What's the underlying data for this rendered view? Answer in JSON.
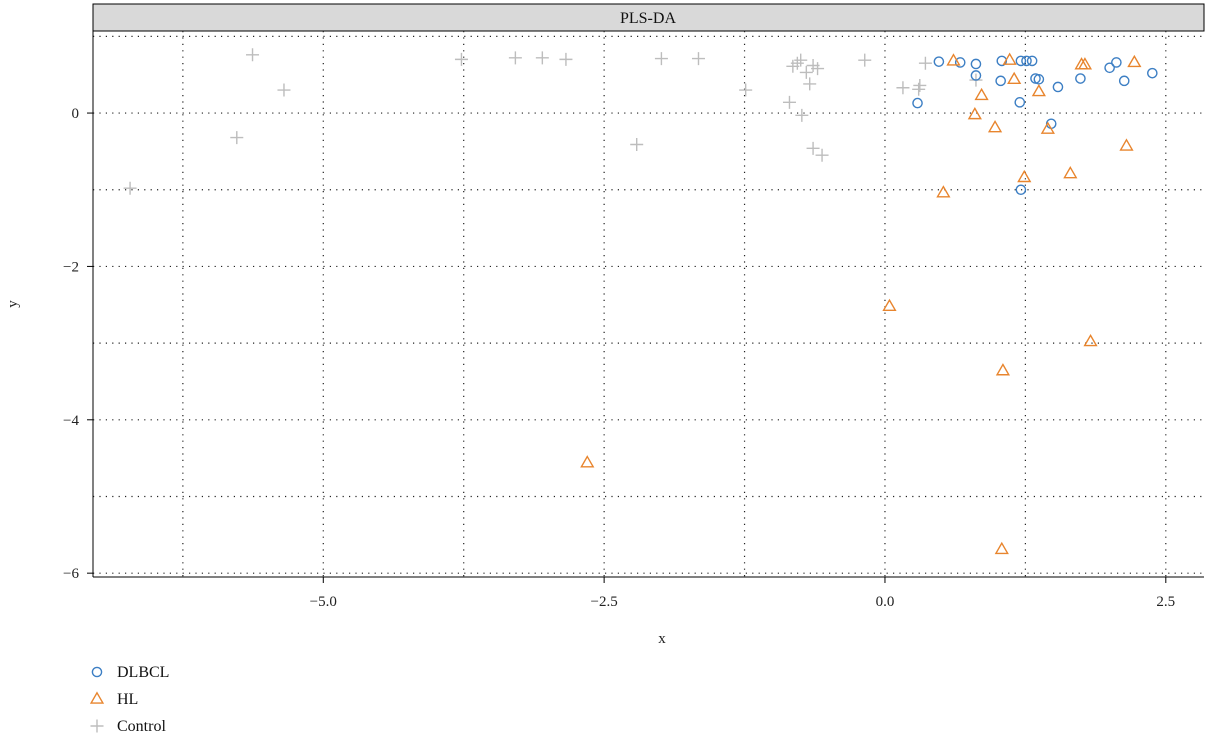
{
  "chart_data": {
    "type": "scatter",
    "title": "PLS-DA",
    "xlabel": "x",
    "ylabel": "y",
    "xlim": [
      -7.05,
      2.84
    ],
    "ylim": [
      -6.05,
      1.07
    ],
    "x_ticks": [
      -5.0,
      -2.5,
      0.0,
      2.5
    ],
    "x_tick_labels": [
      "−5.0",
      "−2.5",
      "0.0",
      "2.5"
    ],
    "y_ticks": [
      0,
      -2,
      -4,
      -6
    ],
    "y_tick_labels": [
      "0",
      "−2",
      "−4",
      "−6"
    ],
    "grid": "dotted, major and minor",
    "legend_position": "bottom-left",
    "series": [
      {
        "name": "DLBCL",
        "marker": "circle",
        "color": "#3d7fc4",
        "points": [
          [
            0.48,
            0.67
          ],
          [
            0.67,
            0.66
          ],
          [
            0.81,
            0.64
          ],
          [
            1.04,
            0.68
          ],
          [
            1.21,
            0.68
          ],
          [
            1.26,
            0.68
          ],
          [
            1.31,
            0.68
          ],
          [
            0.29,
            0.13
          ],
          [
            0.81,
            0.49
          ],
          [
            1.03,
            0.42
          ],
          [
            1.2,
            0.14
          ],
          [
            1.34,
            0.45
          ],
          [
            1.37,
            0.44
          ],
          [
            1.54,
            0.34
          ],
          [
            1.48,
            -0.14
          ],
          [
            1.74,
            0.45
          ],
          [
            2.0,
            0.59
          ],
          [
            2.06,
            0.66
          ],
          [
            2.13,
            0.42
          ],
          [
            2.38,
            0.52
          ],
          [
            1.21,
            -1.0
          ]
        ]
      },
      {
        "name": "HL",
        "marker": "triangle",
        "color": "#e8852e",
        "points": [
          [
            0.61,
            0.68
          ],
          [
            1.11,
            0.69
          ],
          [
            1.15,
            0.44
          ],
          [
            0.86,
            0.23
          ],
          [
            0.8,
            -0.02
          ],
          [
            0.98,
            -0.19
          ],
          [
            1.37,
            0.28
          ],
          [
            1.45,
            -0.21
          ],
          [
            1.75,
            0.63
          ],
          [
            1.78,
            0.63
          ],
          [
            2.22,
            0.66
          ],
          [
            2.15,
            -0.43
          ],
          [
            1.65,
            -0.79
          ],
          [
            1.24,
            -0.84
          ],
          [
            0.52,
            -1.04
          ],
          [
            0.04,
            -2.52
          ],
          [
            1.83,
            -2.98
          ],
          [
            1.05,
            -3.36
          ],
          [
            1.04,
            -5.69
          ],
          [
            -2.65,
            -4.56
          ]
        ]
      },
      {
        "name": "Control",
        "marker": "plus",
        "color": "#bdbdbd",
        "points": [
          [
            -6.72,
            -0.98
          ],
          [
            -5.63,
            0.76
          ],
          [
            -5.77,
            -0.32
          ],
          [
            -5.35,
            0.3
          ],
          [
            -3.77,
            0.7
          ],
          [
            -3.29,
            0.72
          ],
          [
            -3.05,
            0.72
          ],
          [
            -2.84,
            0.7
          ],
          [
            -2.21,
            -0.41
          ],
          [
            -1.99,
            0.71
          ],
          [
            -1.66,
            0.71
          ],
          [
            -1.24,
            0.3
          ],
          [
            -0.85,
            0.14
          ],
          [
            -0.82,
            0.61
          ],
          [
            -0.78,
            0.65
          ],
          [
            -0.75,
            0.69
          ],
          [
            -0.7,
            0.53
          ],
          [
            -0.67,
            0.38
          ],
          [
            -0.64,
            0.62
          ],
          [
            -0.6,
            0.58
          ],
          [
            -0.74,
            -0.03
          ],
          [
            -0.64,
            -0.46
          ],
          [
            -0.56,
            -0.55
          ],
          [
            -0.18,
            0.69
          ],
          [
            0.16,
            0.33
          ],
          [
            0.3,
            0.31
          ],
          [
            0.31,
            0.36
          ],
          [
            0.36,
            0.65
          ],
          [
            0.81,
            0.43
          ]
        ]
      }
    ]
  }
}
